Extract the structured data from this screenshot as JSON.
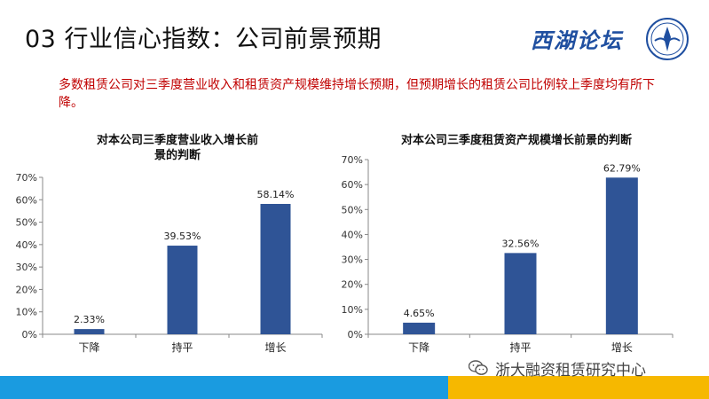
{
  "header": {
    "title": "03 行业信心指数：公司前景预期",
    "logo_text": "西湖论坛"
  },
  "subtitle": "多数租赁公司对三季度营业收入和租赁资产规模维持增长预期，但预期增长的租赁公司比例较上季度均有所下降。",
  "watermark": "浙大融资租赁研究中心",
  "colors": {
    "bar": "#2f5496",
    "footer_blue": "#1a9be0",
    "footer_yellow": "#f6b800",
    "subtitle": "#c00000"
  },
  "chart_data": [
    {
      "type": "bar",
      "title": "对本公司三季度营业收入增长前景的判断",
      "categories": [
        "下降",
        "持平",
        "增长"
      ],
      "values": [
        2.33,
        39.53,
        58.14
      ],
      "value_labels": [
        "2.33%",
        "39.53%",
        "58.14%"
      ],
      "ylim": [
        0,
        70
      ],
      "yticks": [
        "0%",
        "10%",
        "20%",
        "30%",
        "40%",
        "50%",
        "60%",
        "70%"
      ],
      "xlabel": "",
      "ylabel": "",
      "grid": false
    },
    {
      "type": "bar",
      "title": "对本公司三季度租赁资产规模增长前景的判断",
      "categories": [
        "下降",
        "持平",
        "增长"
      ],
      "values": [
        4.65,
        32.56,
        62.79
      ],
      "value_labels": [
        "4.65%",
        "32.56%",
        "62.79%"
      ],
      "ylim": [
        0,
        70
      ],
      "yticks": [
        "0%",
        "10%",
        "20%",
        "30%",
        "40%",
        "50%",
        "60%",
        "70%"
      ],
      "xlabel": "",
      "ylabel": "",
      "grid": false
    }
  ]
}
